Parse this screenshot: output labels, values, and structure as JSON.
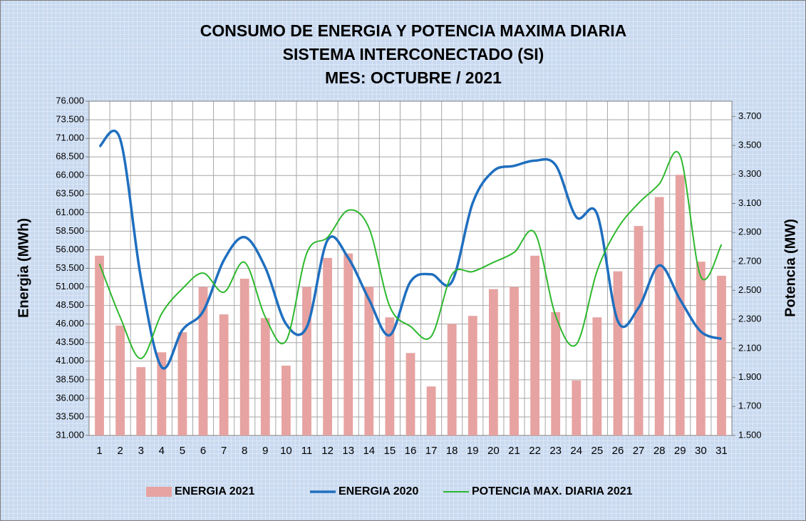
{
  "chart_data": {
    "type": "bar-line",
    "title": [
      "CONSUMO DE ENERGIA Y POTENCIA MAXIMA DIARIA",
      "SISTEMA INTERCONECTADO (SI)",
      "MES:  OCTUBRE / 2021"
    ],
    "ylabel": "Energia (MWh)",
    "y2label": "Potencia (MW)",
    "categories": [
      "1",
      "2",
      "3",
      "4",
      "5",
      "6",
      "7",
      "8",
      "9",
      "10",
      "11",
      "12",
      "13",
      "14",
      "15",
      "16",
      "17",
      "18",
      "19",
      "20",
      "21",
      "22",
      "23",
      "24",
      "25",
      "26",
      "27",
      "28",
      "29",
      "30",
      "31"
    ],
    "series": [
      {
        "name": "ENERGIA 2021",
        "type": "bar",
        "color": "#e6a3a1",
        "values": [
          55200,
          45800,
          40200,
          42200,
          44900,
          51000,
          47300,
          52100,
          46800,
          40400,
          51000,
          54900,
          55500,
          51000,
          46900,
          42100,
          37600,
          46000,
          47100,
          50700,
          51000,
          55200,
          47600,
          38400,
          46900,
          53100,
          59200,
          63100,
          66100,
          54400,
          52500
        ]
      },
      {
        "name": "ENERGIA 2020",
        "type": "line",
        "color": "#1f6fbf",
        "values": [
          69900,
          70900,
          52200,
          40200,
          45200,
          47700,
          54600,
          57700,
          53600,
          46000,
          45600,
          57300,
          54900,
          49300,
          44500,
          51700,
          52700,
          51700,
          62300,
          66600,
          67300,
          68000,
          67400,
          60400,
          60800,
          46400,
          48200,
          53900,
          49300,
          45000,
          44000
        ]
      },
      {
        "name": "POTENCIA MAX. DIARIA 2021",
        "type": "line",
        "axis": "y2",
        "color": "#2db82d",
        "values": [
          2684,
          2316,
          2031,
          2340,
          2512,
          2620,
          2488,
          2694,
          2316,
          2153,
          2758,
          2866,
          3053,
          2930,
          2390,
          2252,
          2183,
          2610,
          2630,
          2694,
          2763,
          2896,
          2326,
          2129,
          2635,
          2930,
          3102,
          3235,
          3431,
          2596,
          2817
        ]
      }
    ],
    "ylim": [
      31000,
      76000
    ],
    "yticks": [
      {
        "value": 31000,
        "label": "31.000"
      },
      {
        "value": 33500,
        "label": "33.500"
      },
      {
        "value": 36000,
        "label": "36.000"
      },
      {
        "value": 38500,
        "label": "38.500"
      },
      {
        "value": 41000,
        "label": "41.000"
      },
      {
        "value": 43500,
        "label": "43.500"
      },
      {
        "value": 46000,
        "label": "46.000"
      },
      {
        "value": 48500,
        "label": "48.500"
      },
      {
        "value": 51000,
        "label": "51.000"
      },
      {
        "value": 53500,
        "label": "53.500"
      },
      {
        "value": 56000,
        "label": "56.000"
      },
      {
        "value": 58500,
        "label": "58.500"
      },
      {
        "value": 61000,
        "label": "61.000"
      },
      {
        "value": 63500,
        "label": "63.500"
      },
      {
        "value": 66000,
        "label": "66.000"
      },
      {
        "value": 68500,
        "label": "68.500"
      },
      {
        "value": 71000,
        "label": "71.000"
      },
      {
        "value": 73500,
        "label": "73.500"
      },
      {
        "value": 76000,
        "label": "76.000"
      }
    ],
    "y2lim": [
      1500,
      3805
    ],
    "y2ticks": [
      {
        "value": 1500,
        "label": "1.500"
      },
      {
        "value": 1700,
        "label": "1.700"
      },
      {
        "value": 1900,
        "label": "1.900"
      },
      {
        "value": 2100,
        "label": "2.100"
      },
      {
        "value": 2300,
        "label": "2.300"
      },
      {
        "value": 2500,
        "label": "2.500"
      },
      {
        "value": 2700,
        "label": "2.700"
      },
      {
        "value": 2900,
        "label": "2.900"
      },
      {
        "value": 3100,
        "label": "3.100"
      },
      {
        "value": 3300,
        "label": "3.300"
      },
      {
        "value": 3500,
        "label": "3.500"
      },
      {
        "value": 3700,
        "label": "3.700"
      }
    ],
    "grid": true,
    "legend": "bottom"
  }
}
